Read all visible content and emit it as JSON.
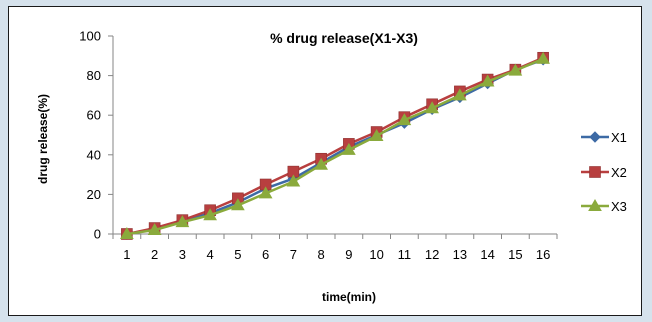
{
  "chart_data": {
    "type": "line",
    "title": "% drug release(X1-X3)",
    "xlabel": "time(min)",
    "ylabel": "drug release(%)",
    "categories": [
      "1",
      "2",
      "3",
      "4",
      "5",
      "6",
      "7",
      "8",
      "9",
      "10",
      "11",
      "12",
      "13",
      "14",
      "15",
      "16"
    ],
    "ylim": [
      0,
      100
    ],
    "yticks": [
      "0",
      "20",
      "40",
      "60",
      "80",
      "100"
    ],
    "grid": false,
    "legend_position": "right",
    "series": [
      {
        "name": "X1",
        "color": "#3d6aa5",
        "marker": "diamond",
        "values": [
          0,
          2.5,
          6.5,
          10.5,
          16,
          23,
          28,
          36,
          44,
          50,
          56,
          63,
          69,
          76,
          83,
          88
        ]
      },
      {
        "name": "X2",
        "color": "#b83f3f",
        "marker": "square",
        "values": [
          0,
          3,
          7,
          12,
          18,
          25,
          31.5,
          38,
          45.5,
          51.5,
          59,
          65.5,
          72,
          78,
          83,
          89
        ]
      },
      {
        "name": "X3",
        "color": "#8aaa3c",
        "marker": "triangle",
        "values": [
          0,
          2,
          6,
          9.5,
          14.5,
          20.5,
          26.5,
          35,
          42.5,
          49.5,
          57.5,
          63.5,
          70,
          77,
          82.5,
          88.5
        ]
      }
    ]
  }
}
